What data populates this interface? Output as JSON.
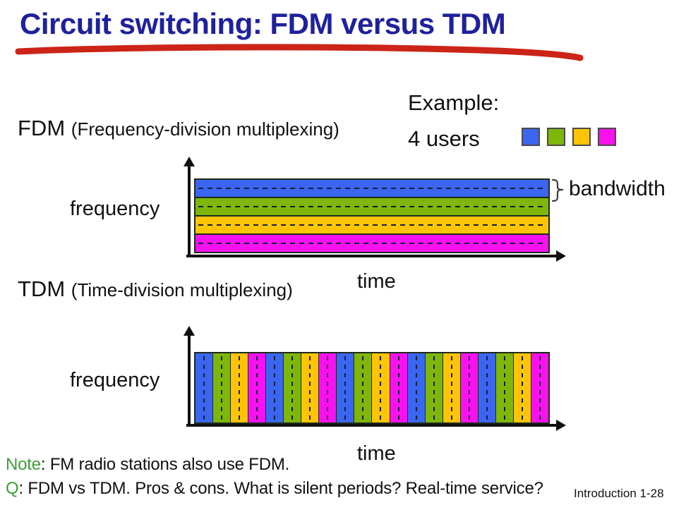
{
  "slide": {
    "title": "Circuit switching: FDM versus TDM",
    "footer": "Introduction 1-28"
  },
  "example": {
    "heading": "Example:",
    "users_label": "4 users"
  },
  "users": [
    {
      "id": "blue",
      "color": "#3b66f2"
    },
    {
      "id": "green",
      "color": "#7eb709"
    },
    {
      "id": "yellow",
      "color": "#ffc406"
    },
    {
      "id": "magenta",
      "color": "#f911ef"
    }
  ],
  "fdm": {
    "name": "FDM",
    "long_name": "(Frequency-division multiplexing)",
    "y_axis_label": "frequency",
    "x_axis_label": "time",
    "bandwidth_label": "bandwidth",
    "band_order": [
      "blue",
      "green",
      "yellow",
      "magenta"
    ]
  },
  "tdm": {
    "name": "TDM",
    "long_name": "(Time-division multiplexing)",
    "y_axis_label": "frequency",
    "x_axis_label": "time",
    "slot_count": 20,
    "slot_pattern": [
      "blue",
      "green",
      "yellow",
      "magenta"
    ]
  },
  "notes": {
    "note_prefix": "Note",
    "note_text": ": FM radio stations also use FDM.",
    "q_prefix": "Q",
    "q_text": ": FDM vs TDM. Pros & cons. What is silent periods? Real-time service?"
  },
  "colors": {
    "title": "#1f219c",
    "underline": "#cc2418",
    "prefix-green": "#3e9e35",
    "axis": "#111111"
  }
}
